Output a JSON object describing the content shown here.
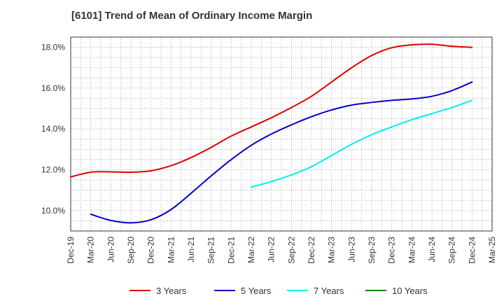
{
  "chart_data": {
    "type": "line",
    "title": "[6101]  Trend of Mean of Ordinary Income Margin",
    "xlabel": "",
    "ylabel": "",
    "categories": [
      "Dec-19",
      "Mar-20",
      "Jun-20",
      "Sep-20",
      "Dec-20",
      "Mar-21",
      "Jun-21",
      "Sep-21",
      "Dec-21",
      "Mar-22",
      "Jun-22",
      "Sep-22",
      "Dec-22",
      "Mar-23",
      "Jun-23",
      "Sep-23",
      "Dec-23",
      "Mar-24",
      "Jun-24",
      "Sep-24",
      "Dec-24",
      "Mar-25"
    ],
    "y_tick_labels": [
      "10.0%",
      "12.0%",
      "14.0%",
      "16.0%",
      "18.0%"
    ],
    "y_ticks": [
      10,
      12,
      14,
      16,
      18
    ],
    "ylim": [
      9.0,
      18.5
    ],
    "grid": true,
    "legend_position": "bottom",
    "series": [
      {
        "name": "3 Years",
        "color": "#dd0000",
        "values": [
          11.65,
          11.88,
          11.9,
          11.88,
          11.95,
          12.2,
          12.6,
          13.1,
          13.65,
          14.1,
          14.55,
          15.05,
          15.6,
          16.3,
          17.0,
          17.6,
          17.98,
          18.12,
          18.15,
          18.05,
          18.0,
          null
        ]
      },
      {
        "name": "5 Years",
        "color": "#0000cc",
        "values": [
          null,
          9.82,
          9.52,
          9.4,
          9.55,
          10.05,
          10.85,
          11.7,
          12.5,
          13.2,
          13.75,
          14.2,
          14.6,
          14.93,
          15.17,
          15.3,
          15.4,
          15.47,
          15.6,
          15.88,
          16.3,
          null
        ]
      },
      {
        "name": "7 Years",
        "color": "#00eeee",
        "values": [
          null,
          null,
          null,
          null,
          null,
          null,
          null,
          null,
          null,
          11.15,
          11.42,
          11.75,
          12.15,
          12.7,
          13.25,
          13.72,
          14.1,
          14.45,
          14.75,
          15.05,
          15.4,
          null
        ]
      },
      {
        "name": "10 Years",
        "color": "#008800",
        "values": [
          null,
          null,
          null,
          null,
          null,
          null,
          null,
          null,
          null,
          null,
          null,
          null,
          null,
          null,
          null,
          null,
          null,
          null,
          null,
          null,
          null,
          null
        ]
      }
    ]
  }
}
